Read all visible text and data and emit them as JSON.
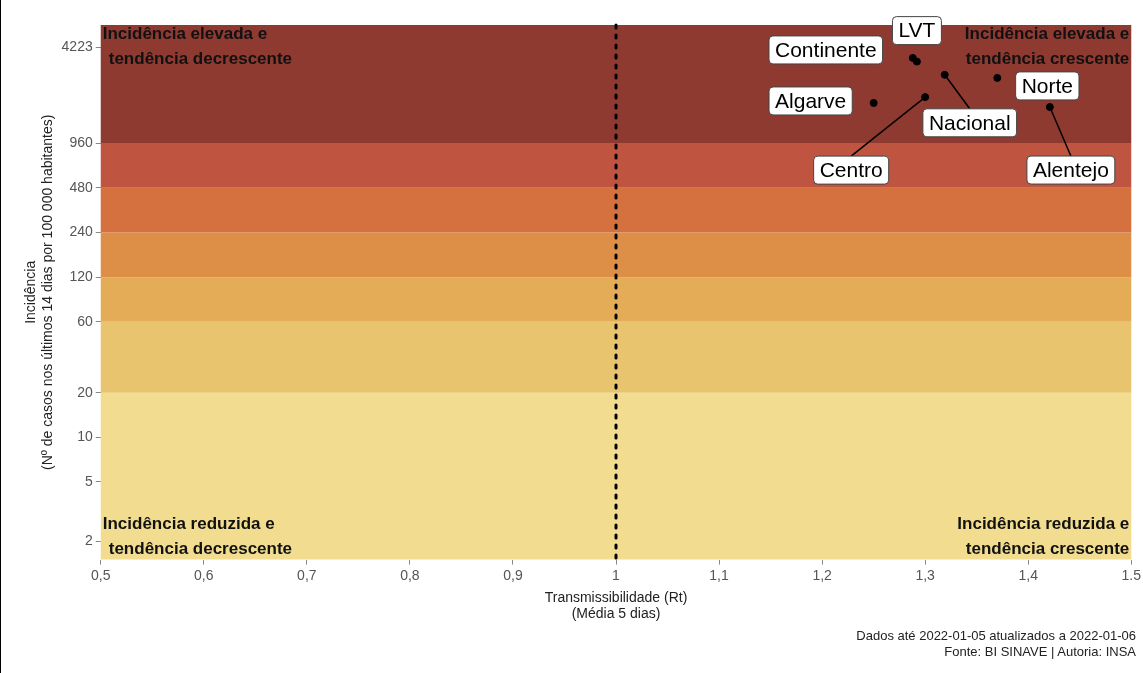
{
  "chart_data": {
    "type": "scatter",
    "xlabel": "Transmissibilidade (Rt)\n(Média 5 dias)",
    "ylabel": "Incidência\n(Nº de casos nos últimos 14 dias por 100 000 habitantes)",
    "x": [
      1.288,
      1.292,
      1.319,
      1.37,
      1.25,
      1.3,
      1.421
    ],
    "series": [
      {
        "color": "#000000",
        "values": [
          3600,
          3400,
          2770,
          2640,
          1790,
          1960,
          1680
        ]
      }
    ],
    "log": "y",
    "xlim": [
      0.5,
      1.5
    ],
    "ylim": [
      1.5,
      6000
    ],
    "xticks": [
      {
        "value": 0.5,
        "label": "0,5"
      },
      {
        "value": 0.6,
        "label": "0,6"
      },
      {
        "value": 0.7,
        "label": "0,7"
      },
      {
        "value": 0.8,
        "label": "0,8"
      },
      {
        "value": 0.9,
        "label": "0,9"
      },
      1,
      {
        "value": 1.1,
        "label": "1,1"
      },
      {
        "value": 1.2,
        "label": "1,2"
      },
      {
        "value": 1.3,
        "label": "1,3"
      },
      {
        "value": 1.4,
        "label": "1,4"
      },
      1.5
    ],
    "yticks": [
      2,
      5,
      10,
      20,
      60,
      120,
      240,
      480,
      960,
      4223
    ],
    "bands": [
      {
        "axis": "y",
        "from": 1.5,
        "to": 20,
        "color": "#f1dc8f"
      },
      {
        "axis": "y",
        "from": 20,
        "to": 60,
        "color": "#e9c46f"
      },
      {
        "axis": "y",
        "from": 60,
        "to": 120,
        "color": "#e5ac58"
      },
      {
        "axis": "y",
        "from": 120,
        "to": 240,
        "color": "#dd8f48"
      },
      {
        "axis": "y",
        "from": 240,
        "to": 480,
        "color": "#d5713e"
      },
      {
        "axis": "y",
        "from": 480,
        "to": 960,
        "color": "#bf5440"
      },
      {
        "axis": "y",
        "from": 960,
        "to": 6000,
        "color": "#8e3a31"
      }
    ],
    "ref_lines": [
      {
        "axis": "x",
        "value": 1,
        "color": "#000000",
        "line_style": "dotted"
      }
    ],
    "marker": "circle",
    "grid": false,
    "legend": false,
    "annotations": [
      {
        "text": "Continente",
        "x": 1.288,
        "y": 3600
      },
      {
        "text": "LVT",
        "x": 1.292,
        "y": 3400
      },
      {
        "text": "Nacional",
        "x": 1.319,
        "y": 2770
      },
      {
        "text": "Norte",
        "x": 1.37,
        "y": 2640
      },
      {
        "text": "Algarve",
        "x": 1.25,
        "y": 1790
      },
      {
        "text": "Centro",
        "x": 1.3,
        "y": 1960
      },
      {
        "text": "Alentejo",
        "x": 1.421,
        "y": 1680
      },
      "Incidência elevada e\ntendência decrescente",
      "Incidência elevada e\ntendência crescente",
      "Incidência reduzida e\ntendência decrescente",
      "Incidência reduzida e\ntendência crescente",
      "Dados até 2022-01-05 atualizados a 2022-01-06\nFonte: BI SINAVE | Autoria: INSA"
    ]
  }
}
